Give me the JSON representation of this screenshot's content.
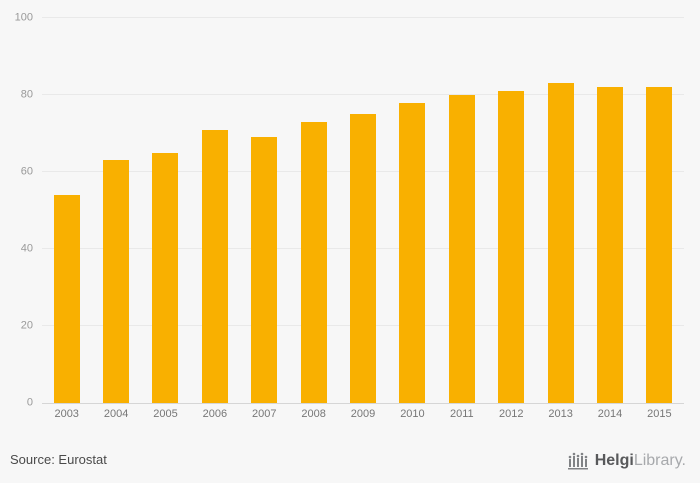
{
  "chart_data": {
    "type": "bar",
    "categories": [
      "2003",
      "2004",
      "2005",
      "2006",
      "2007",
      "2008",
      "2009",
      "2010",
      "2011",
      "2012",
      "2013",
      "2014",
      "2015"
    ],
    "values": [
      54,
      63,
      65,
      71,
      69,
      73,
      75,
      78,
      80,
      81,
      83,
      82,
      82
    ],
    "title": "",
    "xlabel": "",
    "ylabel": "",
    "ylim": [
      0,
      100
    ],
    "yticks": [
      0,
      20,
      40,
      60,
      80,
      100
    ],
    "bar_color": "#f9b000",
    "grid": true,
    "legend": "none",
    "background_color": "#f7f7f7"
  },
  "footer": {
    "source_label": "Source: Eurostat",
    "logo_helgi": "Helgi",
    "logo_library": "Library."
  }
}
